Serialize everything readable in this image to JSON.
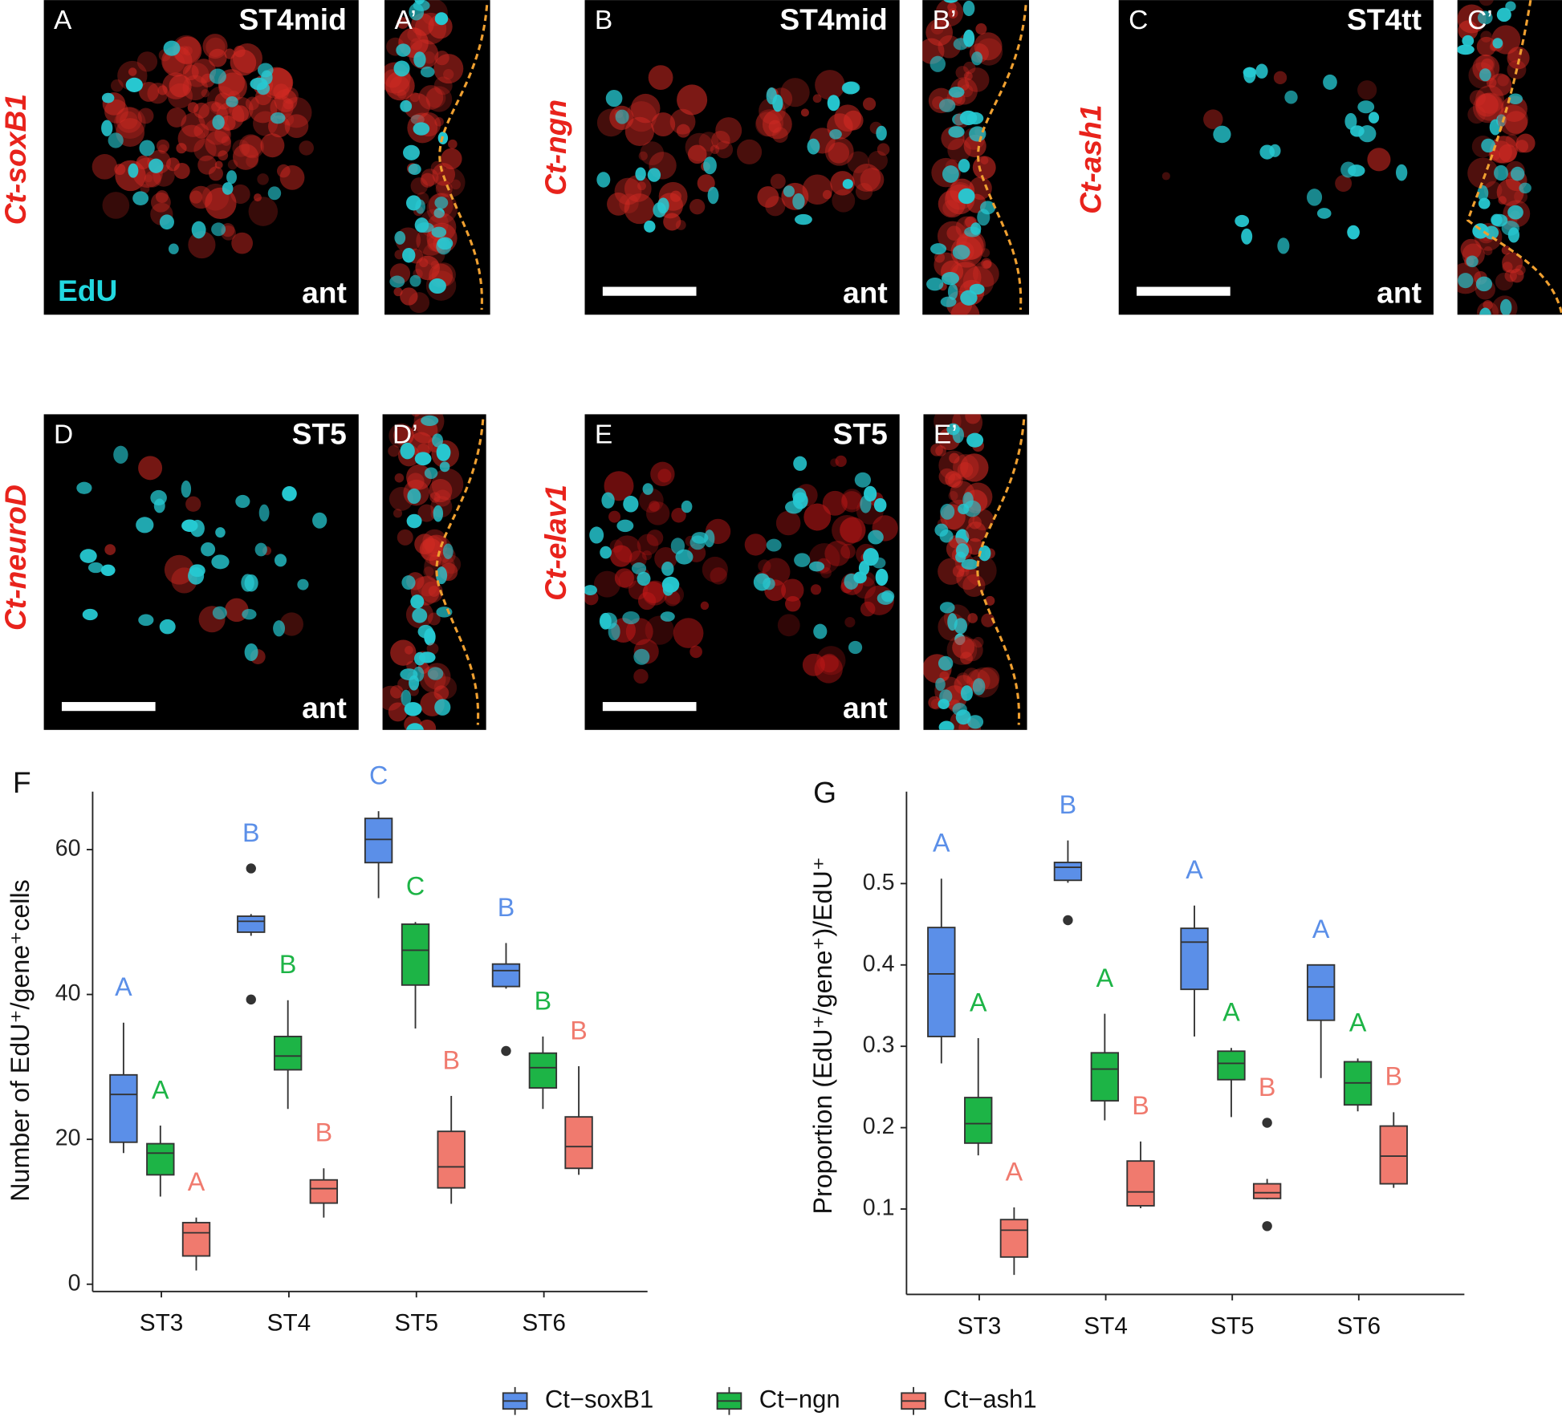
{
  "panels": [
    {
      "letter": "A",
      "stage": "ST4mid",
      "orientation": "ant",
      "stain": "EdU"
    },
    {
      "letter": "A’"
    },
    {
      "letter": "B",
      "stage": "ST4mid",
      "orientation": "ant"
    },
    {
      "letter": "B’"
    },
    {
      "letter": "C",
      "stage": "ST4tt",
      "orientation": "ant"
    },
    {
      "letter": "C’"
    },
    {
      "letter": "D",
      "stage": "ST5",
      "orientation": "ant"
    },
    {
      "letter": "D’"
    },
    {
      "letter": "E",
      "stage": "ST5",
      "orientation": "ant"
    },
    {
      "letter": "E’"
    }
  ],
  "gene_labels": [
    "Ct-soxB1",
    "Ct-ngn",
    "Ct-ash1",
    "Ct-neuroD",
    "Ct-elav1"
  ],
  "chart_data": [
    {
      "type": "box",
      "panel_label": "F",
      "ylabel": "Number of EdU⁺/gene⁺cells",
      "categories": [
        "ST3",
        "ST4",
        "ST5",
        "ST6"
      ],
      "ylim": [
        -1,
        68
      ],
      "yticks": [
        0,
        20,
        40,
        60
      ],
      "series": [
        {
          "name": "Ct−soxB1",
          "color": "#5b8fe8",
          "letters": [
            "A",
            "B",
            "C",
            "B"
          ],
          "values": [
            {
              "low": 18.1,
              "q1": 19.6,
              "median": 26.2,
              "q3": 28.9,
              "high": 36.1,
              "outliers": []
            },
            {
              "low": 48.1,
              "q1": 48.6,
              "median": 50.1,
              "q3": 50.8,
              "high": 51.1,
              "outliers": [
                57.4,
                39.3
              ]
            },
            {
              "low": 53.3,
              "q1": 58.2,
              "median": 61.4,
              "q3": 64.3,
              "high": 65.3,
              "outliers": []
            },
            {
              "low": 40.8,
              "q1": 41.1,
              "median": 43.3,
              "q3": 44.2,
              "high": 47.1,
              "outliers": [
                32.2
              ]
            }
          ]
        },
        {
          "name": "Ct−ngn",
          "color": "#1db446",
          "letters": [
            "A",
            "B",
            "C",
            "B"
          ],
          "values": [
            {
              "low": 12.1,
              "q1": 15.1,
              "median": 18.1,
              "q3": 19.4,
              "high": 21.9,
              "outliers": []
            },
            {
              "low": 24.2,
              "q1": 29.6,
              "median": 31.5,
              "q3": 34.2,
              "high": 39.2,
              "outliers": []
            },
            {
              "low": 35.3,
              "q1": 41.3,
              "median": 46.1,
              "q3": 49.7,
              "high": 50.0,
              "outliers": []
            },
            {
              "low": 24.2,
              "q1": 27.1,
              "median": 29.9,
              "q3": 31.9,
              "high": 34.2,
              "outliers": []
            }
          ]
        },
        {
          "name": "Ct−ash1",
          "color": "#f07a6e",
          "letters": [
            "A",
            "B",
            "B",
            "B"
          ],
          "values": [
            {
              "low": 1.9,
              "q1": 3.9,
              "median": 7.1,
              "q3": 8.5,
              "high": 9.2,
              "outliers": []
            },
            {
              "low": 9.2,
              "q1": 11.2,
              "median": 13.2,
              "q3": 14.4,
              "high": 16.0,
              "outliers": []
            },
            {
              "low": 11.1,
              "q1": 13.3,
              "median": 16.2,
              "q3": 21.1,
              "high": 26.0,
              "outliers": []
            },
            {
              "low": 15.1,
              "q1": 16.0,
              "median": 19.0,
              "q3": 23.1,
              "high": 30.1,
              "outliers": []
            }
          ]
        }
      ]
    },
    {
      "type": "box",
      "panel_label": "G",
      "ylabel": "Proportion (EdU⁺/gene⁺)/EdU⁺",
      "categories": [
        "ST3",
        "ST4",
        "ST5",
        "ST6"
      ],
      "ylim": [
        -0.005,
        0.613
      ],
      "yticks": [
        0.1,
        0.2,
        0.3,
        0.4,
        0.5
      ],
      "series": [
        {
          "name": "Ct−soxB1",
          "color": "#5b8fe8",
          "letters": [
            "A",
            "B",
            "A",
            "A"
          ],
          "values": [
            {
              "low": 0.279,
              "q1": 0.312,
              "median": 0.389,
              "q3": 0.446,
              "high": 0.506,
              "outliers": []
            },
            {
              "low": 0.501,
              "q1": 0.504,
              "median": 0.52,
              "q3": 0.526,
              "high": 0.553,
              "outliers": [
                0.455
              ]
            },
            {
              "low": 0.312,
              "q1": 0.37,
              "median": 0.428,
              "q3": 0.445,
              "high": 0.473,
              "outliers": []
            },
            {
              "low": 0.261,
              "q1": 0.332,
              "median": 0.373,
              "q3": 0.4,
              "high": 0.4,
              "outliers": []
            }
          ]
        },
        {
          "name": "Ct−ngn",
          "color": "#1db446",
          "letters": [
            "A",
            "A",
            "A",
            "A"
          ],
          "values": [
            {
              "low": 0.166,
              "q1": 0.181,
              "median": 0.205,
              "q3": 0.237,
              "high": 0.31,
              "outliers": []
            },
            {
              "low": 0.209,
              "q1": 0.233,
              "median": 0.272,
              "q3": 0.292,
              "high": 0.34,
              "outliers": []
            },
            {
              "low": 0.213,
              "q1": 0.259,
              "median": 0.279,
              "q3": 0.294,
              "high": 0.298,
              "outliers": []
            },
            {
              "low": 0.22,
              "q1": 0.228,
              "median": 0.255,
              "q3": 0.281,
              "high": 0.285,
              "outliers": []
            }
          ]
        },
        {
          "name": "Ct−ash1",
          "color": "#f07a6e",
          "letters": [
            "A",
            "B",
            "B",
            "B"
          ],
          "values": [
            {
              "low": 0.019,
              "q1": 0.041,
              "median": 0.074,
              "q3": 0.087,
              "high": 0.102,
              "outliers": []
            },
            {
              "low": 0.101,
              "q1": 0.104,
              "median": 0.121,
              "q3": 0.159,
              "high": 0.183,
              "outliers": []
            },
            {
              "low": 0.112,
              "q1": 0.113,
              "median": 0.12,
              "q3": 0.131,
              "high": 0.137,
              "outliers": [
                0.206,
                0.079
              ]
            },
            {
              "low": 0.126,
              "q1": 0.131,
              "median": 0.165,
              "q3": 0.202,
              "high": 0.219,
              "outliers": []
            }
          ]
        }
      ]
    }
  ]
}
